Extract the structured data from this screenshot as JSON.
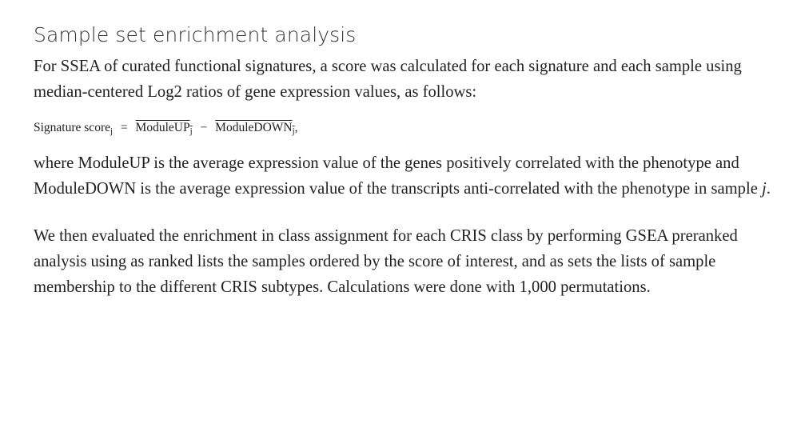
{
  "section": {
    "title": "Sample set enrichment analysis"
  },
  "paragraph1": "For SSEA of curated functional signatures, a score was calculated for each signature and each sample using median-centered Log2 ratios of gene expression values, as follows:",
  "equation": {
    "lhs": "Signature score",
    "lhs_sub": "j",
    "equals": "=",
    "term1": "ModuleUP",
    "term1_sub": "j",
    "minus": "−",
    "term2": "ModuleDOWN",
    "term2_sub": "j",
    "trailing": ","
  },
  "paragraph2": {
    "text": "where ModuleUP is the average expression value of the genes positively correlated with the phenotype and ModuleDOWN is the average expression value of the transcripts anti-correlated with the phenotype in sample ",
    "variable": "j",
    "end": "."
  },
  "paragraph3": "We then evaluated the enrichment in class assignment for each CRIS class by performing GSEA preranked analysis using as ranked lists the samples ordered by the score of interest, and as sets the lists of sample membership to the different CRIS subtypes. Calculations were done with 1,000 permutations."
}
